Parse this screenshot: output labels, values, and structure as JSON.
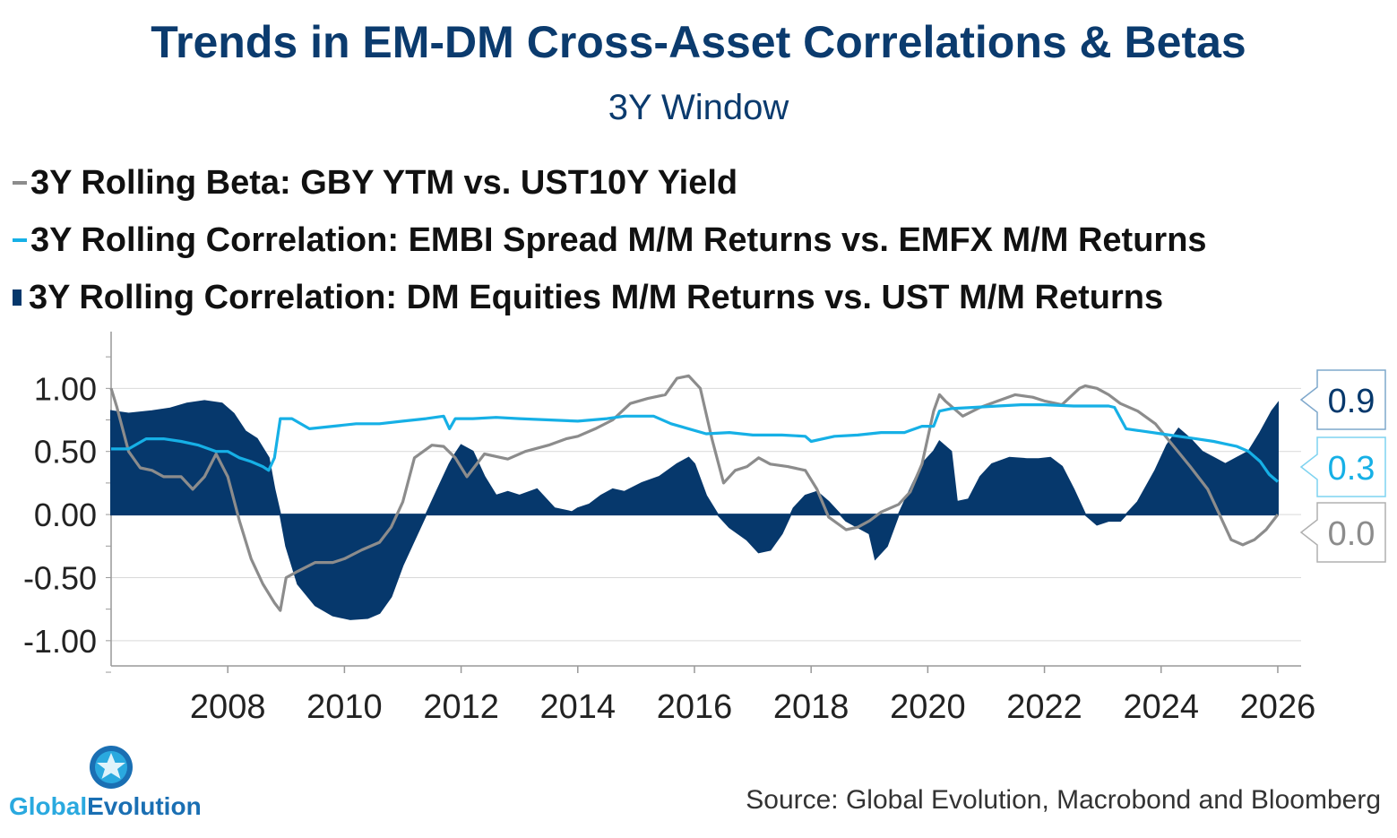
{
  "chart_data": {
    "type": "line",
    "title": "Trends in EM-DM Cross-Asset Correlations & Betas",
    "subtitle": "3Y Window",
    "xlabel": "",
    "ylabel": "",
    "xlim": [
      2006.0,
      2026.4
    ],
    "ylim": [
      -1.2,
      1.45
    ],
    "x_ticks": [
      2008,
      2010,
      2012,
      2014,
      2016,
      2018,
      2020,
      2022,
      2024,
      2026
    ],
    "x_tick_labels": [
      "2008",
      "2010",
      "2012",
      "2014",
      "2016",
      "2018",
      "2020",
      "2022",
      "2024",
      "2026"
    ],
    "y_ticks": [
      1.0,
      0.5,
      0.0,
      -0.5,
      -1.0
    ],
    "y_tick_labels": [
      "1.00",
      "0.50",
      "0.00",
      "-0.50",
      "-1.00"
    ],
    "series": [
      {
        "name": "3Y Rolling Beta: GBY YTM vs. UST10Y Yield",
        "kind": "line",
        "color": "#8c8c8c",
        "last_value_label": "0.0",
        "x": [
          2006.0,
          2006.1,
          2006.3,
          2006.5,
          2006.7,
          2006.9,
          2007.2,
          2007.4,
          2007.6,
          2007.8,
          2008.0,
          2008.2,
          2008.4,
          2008.6,
          2008.8,
          2008.9,
          2009.0,
          2009.2,
          2009.5,
          2009.8,
          2010.0,
          2010.3,
          2010.6,
          2010.8,
          2011.0,
          2011.2,
          2011.5,
          2011.7,
          2011.9,
          2012.1,
          2012.4,
          2012.8,
          2013.1,
          2013.5,
          2013.8,
          2014.0,
          2014.3,
          2014.6,
          2014.9,
          2015.2,
          2015.5,
          2015.7,
          2015.9,
          2016.1,
          2016.3,
          2016.5,
          2016.7,
          2016.9,
          2017.1,
          2017.3,
          2017.6,
          2017.9,
          2018.1,
          2018.3,
          2018.6,
          2018.8,
          2019.0,
          2019.2,
          2019.5,
          2019.7,
          2019.9,
          2020.1,
          2020.2,
          2020.3,
          2020.6,
          2020.9,
          2021.2,
          2021.5,
          2021.8,
          2022.0,
          2022.3,
          2022.6,
          2022.7,
          2022.9,
          2023.1,
          2023.3,
          2023.6,
          2023.9,
          2024.2,
          2024.5,
          2024.8,
          2025.0,
          2025.2,
          2025.4,
          2025.6,
          2025.8,
          2026.0
        ],
        "values": [
          1.0,
          0.85,
          0.5,
          0.37,
          0.35,
          0.3,
          0.3,
          0.2,
          0.3,
          0.48,
          0.3,
          -0.05,
          -0.35,
          -0.55,
          -0.7,
          -0.76,
          -0.5,
          -0.45,
          -0.38,
          -0.38,
          -0.35,
          -0.28,
          -0.22,
          -0.1,
          0.1,
          0.45,
          0.55,
          0.54,
          0.45,
          0.3,
          0.48,
          0.44,
          0.5,
          0.55,
          0.6,
          0.62,
          0.68,
          0.75,
          0.88,
          0.92,
          0.95,
          1.08,
          1.1,
          1.0,
          0.6,
          0.25,
          0.35,
          0.38,
          0.45,
          0.4,
          0.38,
          0.35,
          0.2,
          -0.02,
          -0.12,
          -0.1,
          -0.05,
          0.02,
          0.08,
          0.18,
          0.4,
          0.82,
          0.95,
          0.9,
          0.78,
          0.85,
          0.9,
          0.95,
          0.93,
          0.9,
          0.87,
          1.0,
          1.02,
          1.0,
          0.95,
          0.88,
          0.82,
          0.72,
          0.55,
          0.38,
          0.2,
          0.0,
          -0.2,
          -0.24,
          -0.2,
          -0.12,
          0.0
        ]
      },
      {
        "name": "3Y Rolling Correlation: EMBI Spread M/M Returns vs. EMFX M/M Returns",
        "kind": "line",
        "color": "#16b0e6",
        "last_value_label": "0.3",
        "x": [
          2006.0,
          2006.3,
          2006.6,
          2006.9,
          2007.2,
          2007.5,
          2007.8,
          2008.0,
          2008.2,
          2008.4,
          2008.6,
          2008.7,
          2008.8,
          2008.9,
          2009.1,
          2009.4,
          2009.8,
          2010.2,
          2010.6,
          2011.0,
          2011.4,
          2011.7,
          2011.8,
          2011.9,
          2012.2,
          2012.6,
          2013.0,
          2013.5,
          2014.0,
          2014.5,
          2014.8,
          2015.0,
          2015.3,
          2015.6,
          2015.9,
          2016.2,
          2016.6,
          2017.0,
          2017.5,
          2017.9,
          2018.0,
          2018.4,
          2018.8,
          2019.2,
          2019.6,
          2019.9,
          2020.1,
          2020.2,
          2020.4,
          2020.8,
          2021.2,
          2021.6,
          2022.0,
          2022.5,
          2022.9,
          2023.1,
          2023.2,
          2023.4,
          2023.7,
          2024.0,
          2024.3,
          2024.6,
          2024.9,
          2025.1,
          2025.3,
          2025.5,
          2025.7,
          2025.85,
          2026.0
        ],
        "values": [
          0.52,
          0.52,
          0.6,
          0.6,
          0.58,
          0.55,
          0.5,
          0.5,
          0.45,
          0.42,
          0.38,
          0.35,
          0.45,
          0.76,
          0.76,
          0.68,
          0.7,
          0.72,
          0.72,
          0.74,
          0.76,
          0.78,
          0.68,
          0.76,
          0.76,
          0.77,
          0.76,
          0.75,
          0.74,
          0.76,
          0.78,
          0.78,
          0.78,
          0.72,
          0.68,
          0.64,
          0.65,
          0.63,
          0.63,
          0.62,
          0.58,
          0.62,
          0.63,
          0.65,
          0.65,
          0.7,
          0.7,
          0.82,
          0.84,
          0.85,
          0.86,
          0.87,
          0.87,
          0.86,
          0.86,
          0.86,
          0.85,
          0.68,
          0.66,
          0.64,
          0.62,
          0.6,
          0.58,
          0.56,
          0.54,
          0.5,
          0.42,
          0.32,
          0.26
        ]
      },
      {
        "name": "3Y Rolling Correlation: DM Equities M/M Returns vs. UST M/M Returns",
        "kind": "area",
        "color": "#06386c",
        "last_value_label": "0.9",
        "x": [
          2006.0,
          2006.3,
          2006.7,
          2007.0,
          2007.3,
          2007.6,
          2007.9,
          2008.1,
          2008.3,
          2008.5,
          2008.7,
          2008.8,
          2008.9,
          2009.0,
          2009.2,
          2009.5,
          2009.8,
          2010.1,
          2010.4,
          2010.6,
          2010.8,
          2011.0,
          2011.2,
          2011.4,
          2011.6,
          2011.8,
          2011.9,
          2012.0,
          2012.2,
          2012.4,
          2012.6,
          2012.8,
          2013.0,
          2013.3,
          2013.6,
          2013.9,
          2014.0,
          2014.2,
          2014.4,
          2014.6,
          2014.8,
          2015.1,
          2015.4,
          2015.7,
          2015.9,
          2016.0,
          2016.2,
          2016.4,
          2016.6,
          2016.9,
          2017.1,
          2017.3,
          2017.5,
          2017.7,
          2017.9,
          2018.1,
          2018.3,
          2018.6,
          2018.8,
          2019.0,
          2019.1,
          2019.3,
          2019.5,
          2019.7,
          2019.9,
          2020.1,
          2020.2,
          2020.4,
          2020.5,
          2020.7,
          2020.9,
          2021.1,
          2021.4,
          2021.7,
          2021.9,
          2022.1,
          2022.3,
          2022.5,
          2022.7,
          2022.9,
          2023.1,
          2023.3,
          2023.6,
          2023.9,
          2024.1,
          2024.3,
          2024.5,
          2024.7,
          2024.9,
          2025.1,
          2025.3,
          2025.5,
          2025.7,
          2025.9,
          2026.0
        ],
        "values": [
          0.82,
          0.8,
          0.82,
          0.84,
          0.88,
          0.9,
          0.88,
          0.8,
          0.66,
          0.6,
          0.45,
          0.2,
          0.0,
          -0.25,
          -0.55,
          -0.72,
          -0.8,
          -0.83,
          -0.82,
          -0.78,
          -0.65,
          -0.4,
          -0.2,
          0.0,
          0.2,
          0.4,
          0.48,
          0.55,
          0.5,
          0.3,
          0.15,
          0.18,
          0.15,
          0.2,
          0.05,
          0.02,
          0.05,
          0.08,
          0.15,
          0.2,
          0.18,
          0.25,
          0.3,
          0.4,
          0.45,
          0.4,
          0.15,
          0.0,
          -0.1,
          -0.2,
          -0.3,
          -0.28,
          -0.15,
          0.05,
          0.15,
          0.18,
          0.1,
          -0.05,
          -0.1,
          -0.15,
          -0.35,
          -0.25,
          0.0,
          0.2,
          0.4,
          0.5,
          0.58,
          0.5,
          0.1,
          0.12,
          0.3,
          0.4,
          0.45,
          0.44,
          0.44,
          0.45,
          0.38,
          0.2,
          0.0,
          -0.08,
          -0.05,
          -0.05,
          0.1,
          0.35,
          0.55,
          0.68,
          0.6,
          0.5,
          0.45,
          0.4,
          0.45,
          0.5,
          0.65,
          0.82,
          0.88
        ]
      }
    ]
  },
  "legend": [
    {
      "symbol": "line",
      "color": "#8c8c8c",
      "label": "3Y Rolling Beta: GBY YTM vs. UST10Y Yield"
    },
    {
      "symbol": "line",
      "color": "#16b0e6",
      "label": "3Y Rolling Correlation: EMBI Spread M/M Returns vs. EMFX M/M Returns"
    },
    {
      "symbol": "box",
      "color": "#06386c",
      "label": "3Y Rolling Correlation: DM Equities M/M Returns vs. UST M/M Returns"
    }
  ],
  "logo": {
    "part1": "Global",
    "part2": "Evolution"
  },
  "source": "Source: Global Evolution, Macrobond and Bloomberg"
}
